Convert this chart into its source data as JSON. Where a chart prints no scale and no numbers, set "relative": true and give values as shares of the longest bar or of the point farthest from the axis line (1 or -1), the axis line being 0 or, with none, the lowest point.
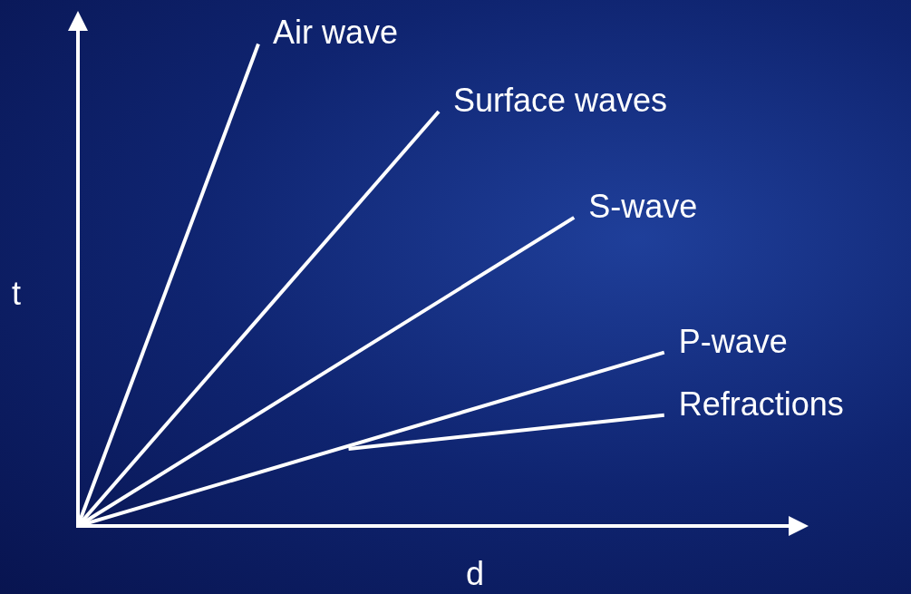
{
  "chart_data": {
    "type": "line",
    "xlabel": "d",
    "ylabel": "t",
    "relative": true,
    "legend": false,
    "grid": false,
    "marker": "none",
    "line_style": "solid",
    "categories": [
      null,
      null,
      null,
      null,
      null,
      null,
      null,
      null,
      null,
      null,
      null,
      null,
      null,
      null,
      null,
      null,
      null
    ],
    "series": [
      {
        "name": "Air wave",
        "color": "#ffffff",
        "values": [
          0,
          null,
          null,
          null,
          1,
          null,
          null,
          null,
          null,
          null,
          null,
          null,
          null,
          null,
          null,
          null,
          null
        ]
      },
      {
        "name": "Surface waves",
        "color": "#ffffff",
        "values": [
          0,
          null,
          null,
          null,
          null,
          null,
          null,
          null,
          0.86,
          null,
          null,
          null,
          null,
          null,
          null,
          null,
          null
        ]
      },
      {
        "name": "S-wave",
        "color": "#ffffff",
        "values": [
          0,
          null,
          null,
          null,
          null,
          null,
          null,
          null,
          null,
          null,
          null,
          0.64,
          null,
          null,
          null,
          null,
          null
        ]
      },
      {
        "name": "P-wave",
        "color": "#ffffff",
        "values": [
          0,
          null,
          null,
          null,
          null,
          null,
          null,
          null,
          null,
          null,
          null,
          null,
          null,
          0.36,
          null,
          null,
          null
        ]
      },
      {
        "name": "Refractions",
        "color": "#ffffff",
        "values": [
          null,
          null,
          null,
          null,
          null,
          null,
          0.16,
          null,
          null,
          null,
          null,
          null,
          null,
          0.23,
          null,
          null,
          null
        ]
      }
    ]
  }
}
